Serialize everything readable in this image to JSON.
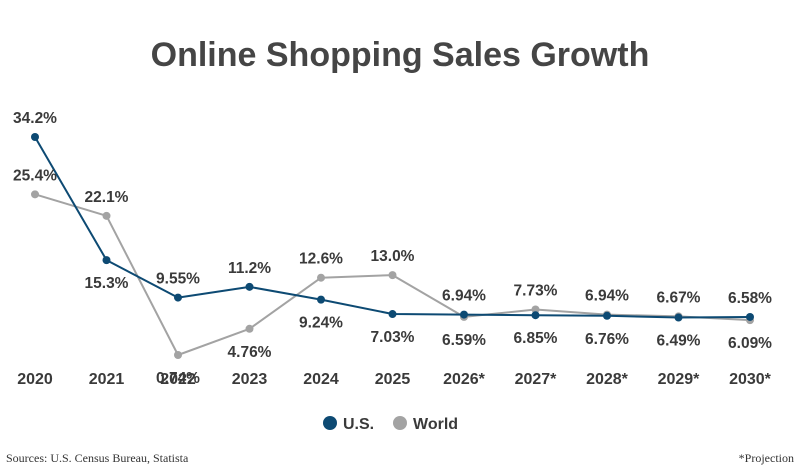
{
  "chart_data": {
    "type": "line",
    "title": "Online Shopping Sales Growth",
    "categories": [
      "2020",
      "2021",
      "2022",
      "2023",
      "2024",
      "2025",
      "2026*",
      "2027*",
      "2028*",
      "2029*",
      "2030*"
    ],
    "series": [
      {
        "name": "U.S.",
        "color": "#0d4a73",
        "values": [
          34.2,
          15.3,
          9.55,
          11.2,
          9.24,
          7.03,
          6.94,
          6.85,
          6.76,
          6.49,
          6.58
        ],
        "labels": [
          "34.2%",
          "15.3%",
          "9.55%",
          "11.2%",
          "9.24%",
          "7.03%",
          "6.94%",
          "6.85%",
          "6.76%",
          "6.49%",
          "6.58%"
        ]
      },
      {
        "name": "World",
        "color": "#a3a3a3",
        "values": [
          25.4,
          22.1,
          0.74,
          4.76,
          12.6,
          13.0,
          6.59,
          7.73,
          6.94,
          6.67,
          6.09
        ],
        "labels": [
          "25.4%",
          "22.1%",
          "0.74%",
          "4.76%",
          "12.6%",
          "13.0%",
          "6.59%",
          "7.73%",
          "6.94%",
          "6.67%",
          "6.09%"
        ]
      }
    ],
    "ylabel": "",
    "xlabel": "",
    "grid": false,
    "legend": "bottom"
  },
  "footer": {
    "source": "Sources: U.S. Census Bureau, Statista",
    "note": "*Projection"
  }
}
